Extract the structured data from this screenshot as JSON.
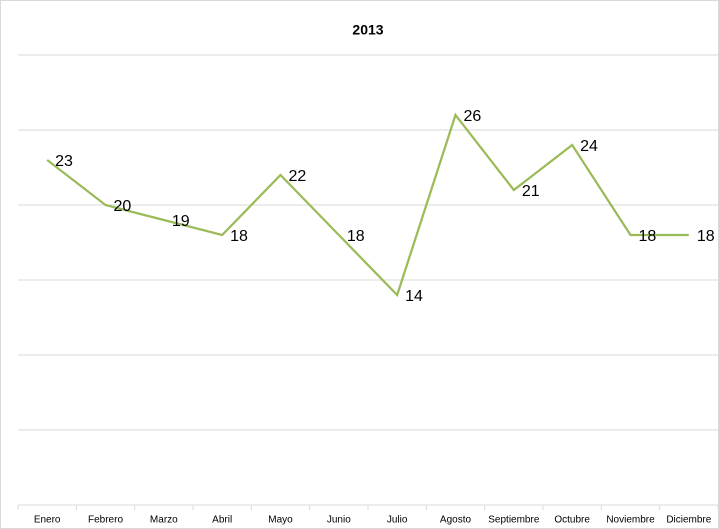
{
  "chart_data": {
    "type": "line",
    "title": "2013",
    "categories": [
      "Enero",
      "Febrero",
      "Marzo",
      "Abril",
      "Mayo",
      "Junio",
      "Julio",
      "Agosto",
      "Septiembre",
      "Octubre",
      "Noviembre",
      "Diciembre"
    ],
    "values": [
      23,
      20,
      19,
      18,
      22,
      18,
      14,
      26,
      21,
      24,
      18,
      18
    ],
    "color": "#9bbb59",
    "ylim": [
      0,
      30
    ],
    "yticks": [
      0,
      5,
      10,
      15,
      20,
      25,
      30
    ],
    "grid": true
  }
}
